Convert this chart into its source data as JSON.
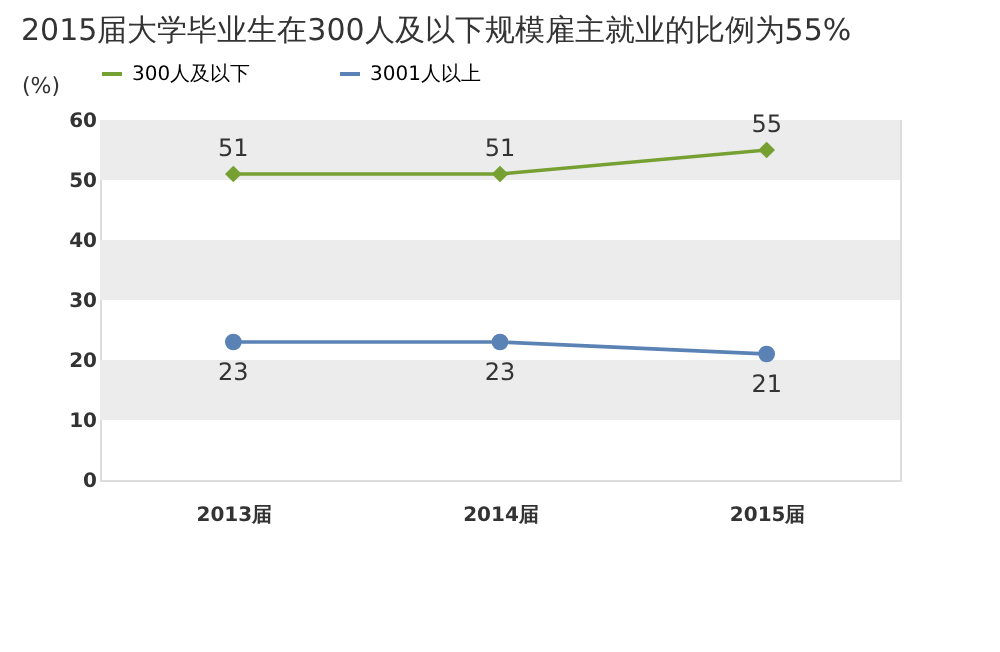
{
  "chart_data": {
    "type": "line",
    "title": "2015届大学毕业生在300人及以下规模雇主就业的比例为55%",
    "ylabel": "(%)",
    "categories": [
      "2013届",
      "2014届",
      "2015届"
    ],
    "series": [
      {
        "name": "300人及以下",
        "color": "#77a033",
        "values": [
          51,
          51,
          55
        ],
        "marker": "diamond"
      },
      {
        "name": "3001人以上",
        "color": "#5b82b4",
        "values": [
          23,
          23,
          21
        ],
        "marker": "circle"
      }
    ],
    "ylim": [
      0,
      60
    ],
    "yticks": [
      0,
      10,
      20,
      30,
      40,
      50,
      60
    ],
    "bands": [
      {
        "axis": "y",
        "from": 10,
        "to": 20,
        "color": "#ececec"
      },
      {
        "axis": "y",
        "from": 30,
        "to": 40,
        "color": "#ececec"
      },
      {
        "axis": "y",
        "from": 50,
        "to": 60,
        "color": "#ececec"
      }
    ],
    "data_labels": true,
    "legend": "top",
    "grid": false,
    "line_style": "solid"
  }
}
